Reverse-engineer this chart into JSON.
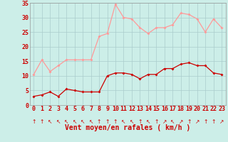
{
  "x": [
    0,
    1,
    2,
    3,
    4,
    5,
    6,
    7,
    8,
    9,
    10,
    11,
    12,
    13,
    14,
    15,
    16,
    17,
    18,
    19,
    20,
    21,
    22,
    23
  ],
  "wind_avg": [
    3,
    3.5,
    4.5,
    3,
    5.5,
    5,
    4.5,
    4.5,
    4.5,
    10,
    11,
    11,
    10.5,
    9,
    10.5,
    10.5,
    12.5,
    12.5,
    14,
    14.5,
    13.5,
    13.5,
    11,
    10.5
  ],
  "wind_gust": [
    10.5,
    15.5,
    11.5,
    13.5,
    15.5,
    15.5,
    15.5,
    15.5,
    23.5,
    24.5,
    34.5,
    30,
    29.5,
    26.5,
    24.5,
    26.5,
    26.5,
    27.5,
    31.5,
    31,
    29.5,
    25,
    29.5,
    26.5
  ],
  "avg_color": "#cc0000",
  "gust_color": "#ff9999",
  "bg_color": "#cceee8",
  "grid_color": "#aacccc",
  "xlabel": "Vent moyen/en rafales ( km/h )",
  "ylim": [
    0,
    35
  ],
  "yticks": [
    0,
    5,
    10,
    15,
    20,
    25,
    30,
    35
  ],
  "xticks": [
    0,
    1,
    2,
    3,
    4,
    5,
    6,
    7,
    8,
    9,
    10,
    11,
    12,
    13,
    14,
    15,
    16,
    17,
    18,
    19,
    20,
    21,
    22,
    23
  ],
  "tick_fontsize": 6,
  "xlabel_fontsize": 7
}
